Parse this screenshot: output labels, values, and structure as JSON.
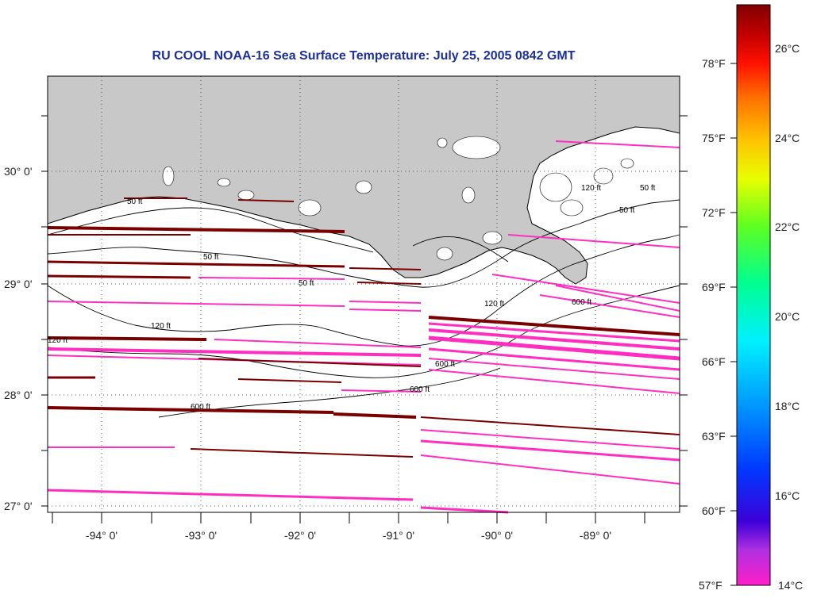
{
  "title": "RU COOL  NOAA-16  Sea Surface Temperature:  July 25, 2005 0842 GMT",
  "lat_labels": [
    "30° 0'",
    "29° 0'",
    "28° 0'",
    "27° 0'"
  ],
  "lon_labels": [
    "-94° 0'",
    "-93° 0'",
    "-92° 0'",
    "-91° 0'",
    "-90° 0'",
    "-89° 0'"
  ],
  "contour_labels": [
    "50 ft",
    "50 ft",
    "50 ft",
    "50 ft",
    "50 ft",
    "120 ft",
    "120 ft",
    "120 ft",
    "120 ft",
    "600 ft",
    "600 ft",
    "600 ft",
    "600 ft"
  ],
  "colorbar": {
    "fahrenheit_labels": [
      "78°F",
      "75°F",
      "72°F",
      "69°F",
      "66°F",
      "63°F",
      "60°F",
      "57°F"
    ],
    "celsius_labels": [
      "26°C",
      "24°C",
      "22°C",
      "20°C",
      "18°C",
      "16°C",
      "14°C"
    ],
    "colors": [
      "#ff1ec8",
      "#b030e0",
      "#3c00d8",
      "#0038ff",
      "#00a0ff",
      "#00f0ff",
      "#00ff90",
      "#60ff20",
      "#e8ff00",
      "#ffc000",
      "#ff7000",
      "#ff1000",
      "#c00000",
      "#800000"
    ]
  },
  "colors": {
    "land": "#c8c8c8",
    "ocean": "#ffffff",
    "sst_cold": "#ff2ec0",
    "sst_dark": "#7a0000",
    "title": "#1c2f9a"
  }
}
